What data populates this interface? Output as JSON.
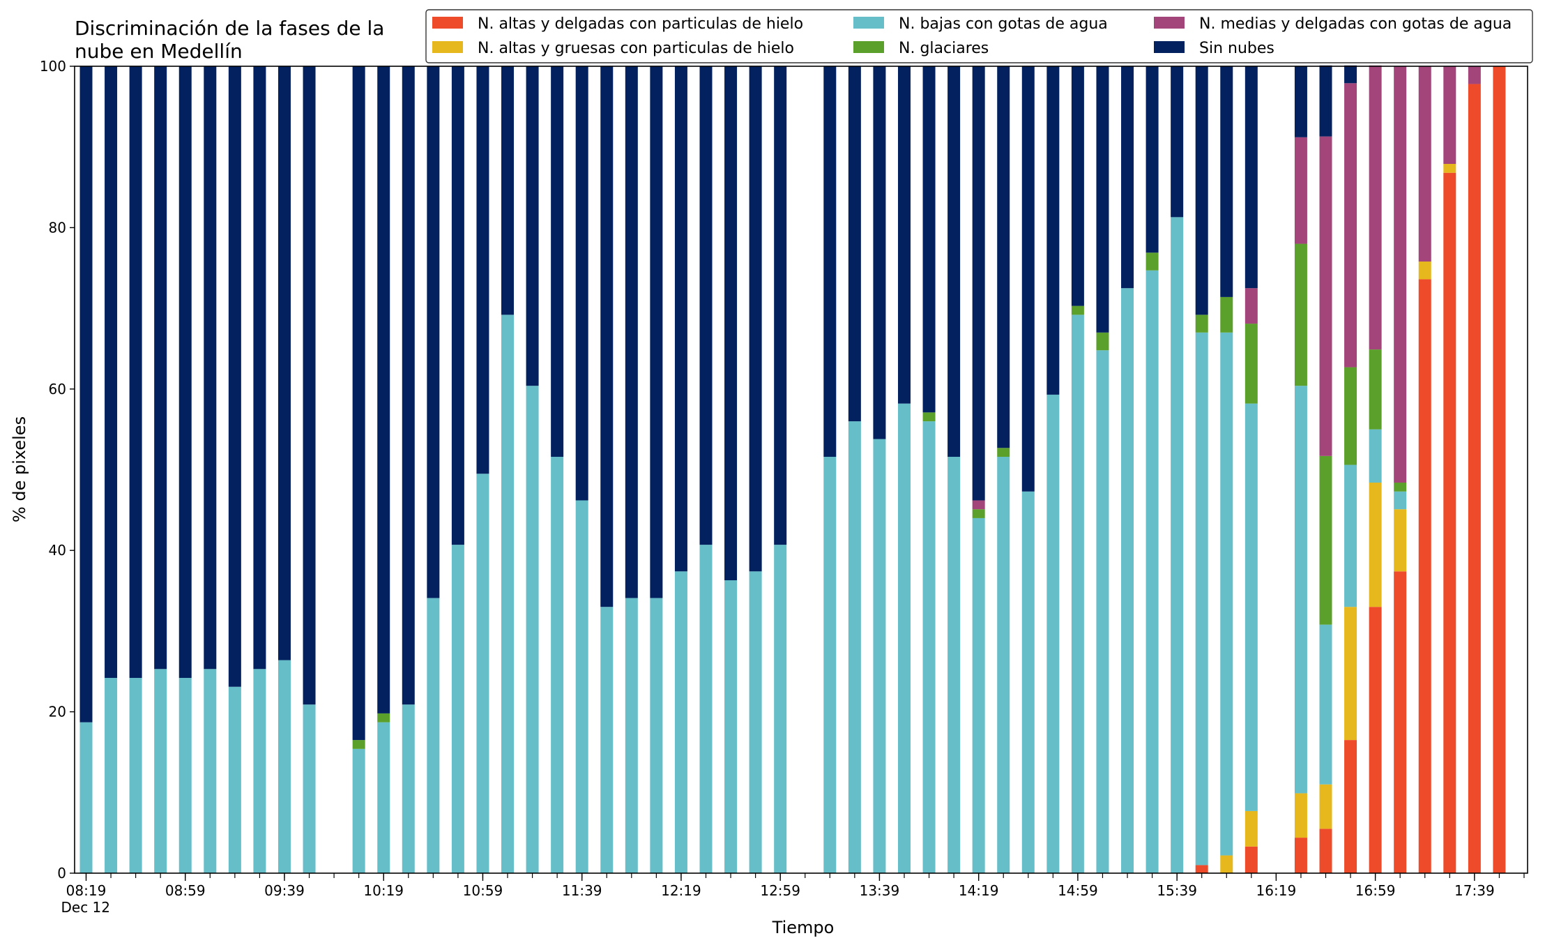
{
  "chart_data": {
    "type": "bar",
    "stacked": true,
    "title_line1": "Discriminación de la fases de la",
    "title_line2": "nube en Medellín",
    "xlabel": "Tiempo",
    "ylabel": "% de pixeles",
    "ylim": [
      0,
      100
    ],
    "yticks": [
      "0",
      "20",
      "40",
      "60",
      "80",
      "100"
    ],
    "grid": false,
    "legend_position": "top-right",
    "x_tick_labels": [
      "08:19",
      "08:59",
      "09:39",
      "10:19",
      "10:59",
      "11:39",
      "12:19",
      "12:59",
      "13:39",
      "14:19",
      "14:59",
      "15:39",
      "16:19",
      "16:59",
      "17:39"
    ],
    "x_date_label": "Dec 12",
    "x": [
      "08:19",
      "08:29",
      "08:39",
      "08:49",
      "08:59",
      "09:09",
      "09:19",
      "09:29",
      "09:39",
      "09:49",
      "09:59",
      "10:09",
      "10:19",
      "10:29",
      "10:39",
      "10:49",
      "10:59",
      "11:09",
      "11:19",
      "11:29",
      "11:39",
      "11:49",
      "11:59",
      "12:09",
      "12:19",
      "12:29",
      "12:39",
      "12:49",
      "12:59",
      "13:09",
      "13:19",
      "13:29",
      "13:39",
      "13:49",
      "13:59",
      "14:09",
      "14:19",
      "14:29",
      "14:39",
      "14:49",
      "14:59",
      "15:09",
      "15:19",
      "15:29",
      "15:39",
      "15:49",
      "15:59",
      "16:09",
      "16:19",
      "16:29",
      "16:39",
      "16:49",
      "16:59",
      "17:09",
      "17:19",
      "17:29",
      "17:39",
      "17:49"
    ],
    "series": [
      {
        "name": "N. altas y delgadas con particulas de hielo",
        "color": "#ee4b2b",
        "values": [
          0,
          0,
          0,
          0,
          0,
          0,
          0,
          0,
          0,
          0,
          null,
          0,
          0,
          0,
          0,
          0,
          0,
          0,
          0,
          0,
          0,
          0,
          0,
          0,
          0,
          0,
          0,
          0,
          0,
          null,
          0,
          0,
          0,
          0,
          0,
          0,
          0,
          0,
          0,
          0,
          0,
          0,
          0,
          0,
          0,
          1,
          0,
          3.3,
          null,
          4.4,
          5.5,
          16.5,
          33,
          37.4,
          73.6,
          86.8,
          97.8,
          100
        ]
      },
      {
        "name": "N. altas y gruesas con particulas de hielo",
        "color": "#e6b81e",
        "values": [
          0,
          0,
          0,
          0,
          0,
          0,
          0,
          0,
          0,
          0,
          null,
          0,
          0,
          0,
          0,
          0,
          0,
          0,
          0,
          0,
          0,
          0,
          0,
          0,
          0,
          0,
          0,
          0,
          0,
          null,
          0,
          0,
          0,
          0,
          0,
          0,
          0,
          0,
          0,
          0,
          0,
          0,
          0,
          0,
          0,
          0,
          2.2,
          4.4,
          null,
          5.5,
          5.5,
          16.5,
          15.4,
          7.7,
          2.2,
          1.1,
          0,
          0
        ]
      },
      {
        "name": "N. bajas con gotas de agua",
        "color": "#66bec9",
        "values": [
          18.7,
          24.2,
          24.2,
          25.3,
          24.2,
          25.3,
          23.1,
          25.3,
          26.4,
          20.9,
          null,
          15.4,
          18.7,
          20.9,
          34.1,
          40.7,
          49.5,
          69.2,
          60.4,
          51.6,
          46.2,
          33,
          34.1,
          34.1,
          37.4,
          40.7,
          36.3,
          37.4,
          40.7,
          null,
          51.6,
          56,
          53.8,
          58.2,
          56,
          51.6,
          44,
          51.6,
          47.3,
          59.3,
          69.2,
          64.8,
          72.5,
          74.7,
          81.3,
          66,
          64.8,
          50.5,
          null,
          50.5,
          19.8,
          17.6,
          6.6,
          2.2,
          0,
          0,
          0,
          0
        ]
      },
      {
        "name": "N. glaciares",
        "color": "#5ca02c",
        "values": [
          0,
          0,
          0,
          0,
          0,
          0,
          0,
          0,
          0,
          0,
          null,
          1.1,
          1.1,
          0,
          0,
          0,
          0,
          0,
          0,
          0,
          0,
          0,
          0,
          0,
          0,
          0,
          0,
          0,
          0,
          null,
          0,
          0,
          0,
          0,
          1.1,
          0,
          1.1,
          1.1,
          0,
          0,
          1.1,
          2.2,
          0,
          2.2,
          0,
          2.2,
          4.4,
          9.9,
          null,
          17.6,
          20.9,
          12.1,
          9.9,
          1.1,
          0,
          0,
          0,
          0
        ]
      },
      {
        "name": "N. medias y delgadas con gotas de agua",
        "color": "#a3457a",
        "values": [
          0,
          0,
          0,
          0,
          0,
          0,
          0,
          0,
          0,
          0,
          null,
          0,
          0,
          0,
          0,
          0,
          0,
          0,
          0,
          0,
          0,
          0,
          0,
          0,
          0,
          0,
          0,
          0,
          0,
          null,
          0,
          0,
          0,
          0,
          0,
          0,
          1.1,
          0,
          0,
          0,
          0,
          0,
          0,
          0,
          0,
          0,
          0,
          4.4,
          null,
          13.2,
          39.6,
          35.2,
          35.2,
          51.6,
          24.2,
          12.1,
          2.2,
          0
        ]
      },
      {
        "name": "Sin nubes",
        "color": "#03215f",
        "values": [
          81.3,
          75.8,
          75.8,
          74.7,
          75.8,
          74.7,
          76.9,
          74.7,
          73.6,
          79.1,
          null,
          83.5,
          80.2,
          79.1,
          65.9,
          59.3,
          50.5,
          30.8,
          39.6,
          48.4,
          53.8,
          67,
          65.9,
          65.9,
          62.6,
          59.3,
          63.7,
          62.6,
          59.3,
          null,
          48.4,
          44,
          46.2,
          41.8,
          42.9,
          48.4,
          53.8,
          47.3,
          52.7,
          40.7,
          29.7,
          33,
          27.5,
          23.1,
          18.7,
          30.8,
          28.6,
          27.5,
          null,
          8.8,
          8.8,
          2.2,
          0,
          0,
          0,
          0,
          0,
          0
        ]
      }
    ]
  }
}
